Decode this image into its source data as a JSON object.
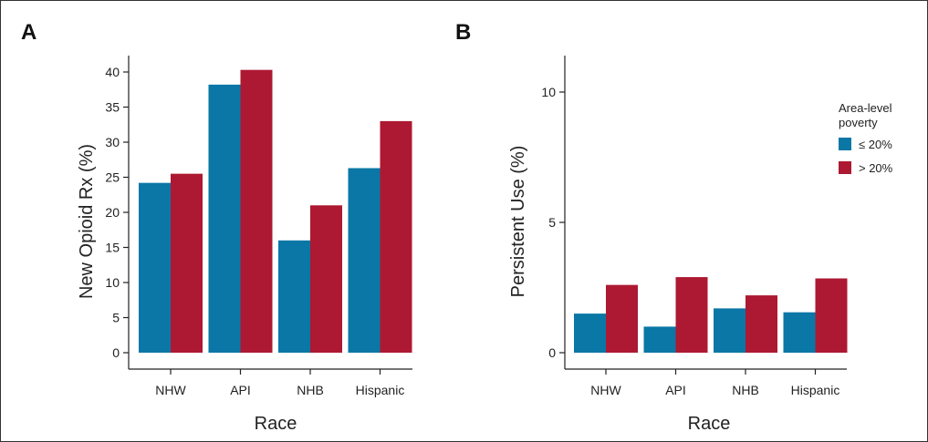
{
  "colors": {
    "low_poverty": "#0A77A6",
    "high_poverty": "#AD1932"
  },
  "legend": {
    "title_line1": "Area-level",
    "title_line2": "poverty",
    "items": [
      {
        "label": "≤ 20%",
        "color": "#0A77A6"
      },
      {
        "label": "> 20%",
        "color": "#AD1932"
      }
    ]
  },
  "chart_data": [
    {
      "type": "bar",
      "panel_label": "A",
      "categories": [
        "NHW",
        "API",
        "NHB",
        "Hispanic"
      ],
      "series": [
        {
          "name": "≤ 20%",
          "values": [
            24.2,
            38.2,
            16.0,
            26.3
          ]
        },
        {
          "name": "> 20%",
          "values": [
            25.5,
            40.3,
            21.0,
            33.0
          ]
        }
      ],
      "xlabel": "Race",
      "ylabel": "New Opioid Rx (%)",
      "ylim": [
        0,
        40
      ],
      "yticks": [
        0,
        5,
        10,
        15,
        20,
        25,
        30,
        35,
        40
      ],
      "grid": false
    },
    {
      "type": "bar",
      "panel_label": "B",
      "categories": [
        "NHW",
        "API",
        "NHB",
        "Hispanic"
      ],
      "series": [
        {
          "name": "≤ 20%",
          "values": [
            1.5,
            1.0,
            1.7,
            1.55
          ]
        },
        {
          "name": "> 20%",
          "values": [
            2.6,
            2.9,
            2.2,
            2.85
          ]
        }
      ],
      "xlabel": "Race",
      "ylabel": "Persistent Use (%)",
      "ylim": [
        0,
        10
      ],
      "yticks": [
        0,
        5,
        10
      ],
      "grid": false,
      "legend_position": "right"
    }
  ]
}
